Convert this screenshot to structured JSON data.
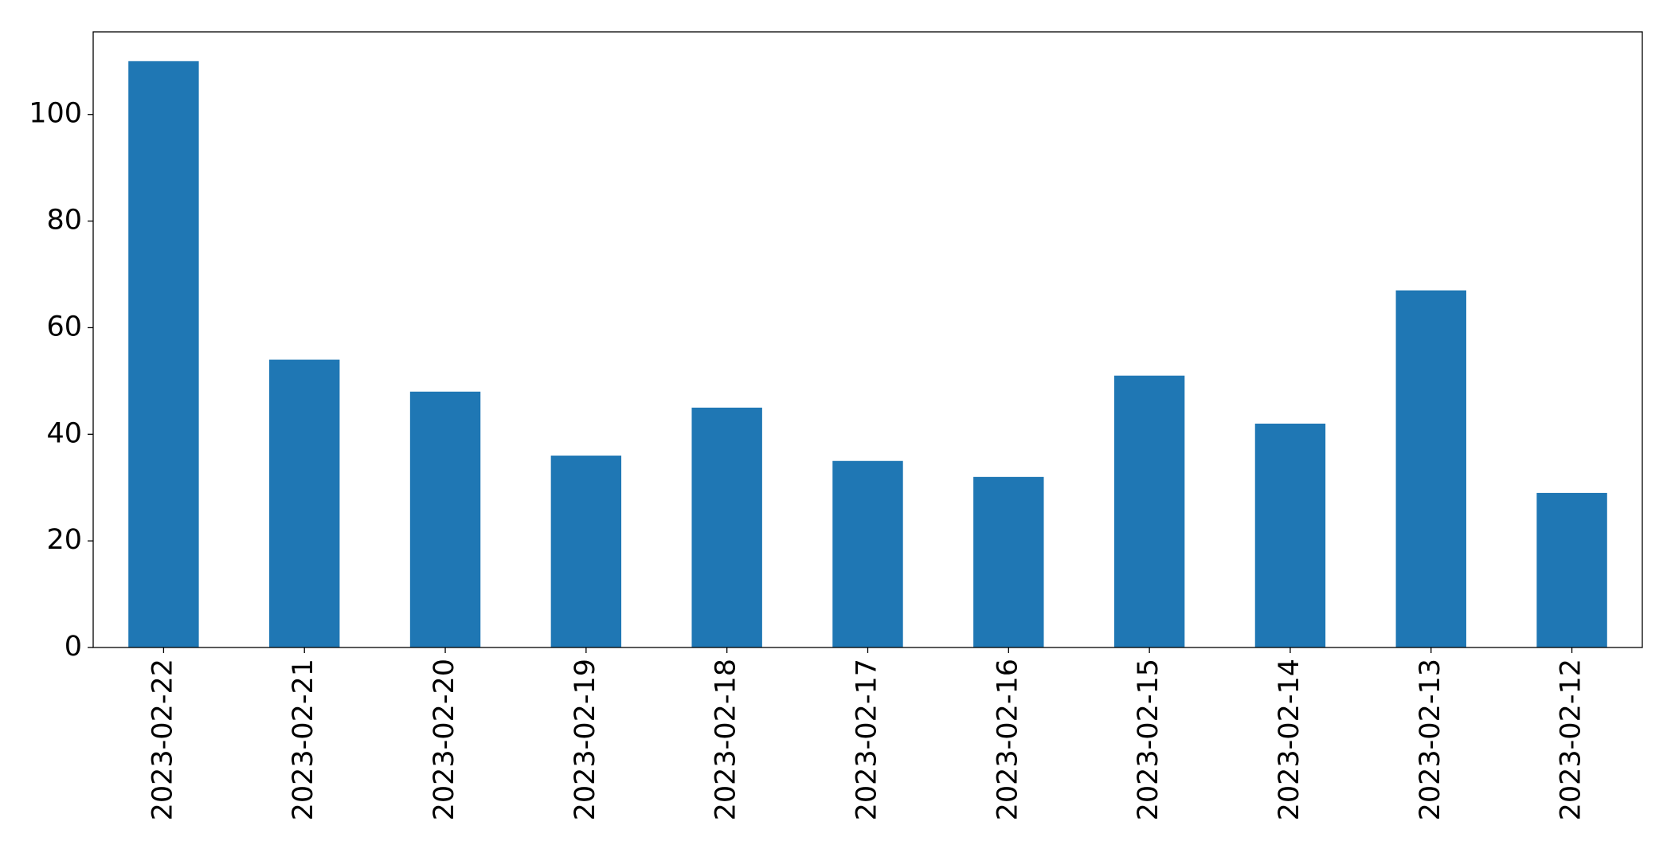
{
  "chart_data": {
    "type": "bar",
    "categories": [
      "2023-02-22",
      "2023-02-21",
      "2023-02-20",
      "2023-02-19",
      "2023-02-18",
      "2023-02-17",
      "2023-02-16",
      "2023-02-15",
      "2023-02-14",
      "2023-02-13",
      "2023-02-12"
    ],
    "values": [
      110,
      54,
      48,
      36,
      45,
      35,
      32,
      51,
      42,
      67,
      29
    ],
    "color": "#1f77b4",
    "ylim": [
      0,
      115.5
    ],
    "yticks": [
      0,
      20,
      40,
      60,
      80,
      100
    ],
    "grid": false
  }
}
